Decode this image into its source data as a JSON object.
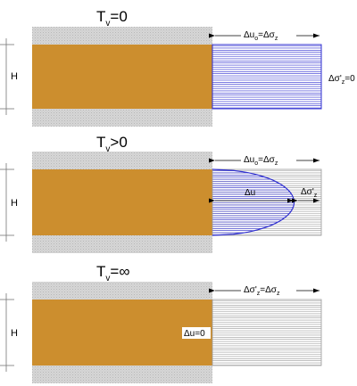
{
  "colors": {
    "clay": "#CC8E2E",
    "sand": "#D6D6D6",
    "blue_line": "#3030D0",
    "gray_line": "#9A9A9A"
  },
  "panels": [
    {
      "title": {
        "main": "T",
        "sub": "v",
        "rest": "=0"
      },
      "depth_label": "H",
      "arrow_label": {
        "a": "Δu",
        "a_sub": "o",
        "b": "=Δσ",
        "b_sub": "z"
      },
      "side_label": {
        "a": "Δσ'",
        "a_sub": "z",
        "b": "=0"
      },
      "excess_pore_pressure_fraction": 1.0
    },
    {
      "title": {
        "main": "T",
        "sub": "v",
        "rest": ">0"
      },
      "depth_label": "H",
      "arrow_label": {
        "a": "Δu",
        "a_sub": "o",
        "b": "=Δσ",
        "b_sub": "z"
      },
      "inner_label": "Δu",
      "side_label": {
        "a": "Δσ'",
        "a_sub": "z"
      },
      "excess_pore_pressure_fraction": 0.75
    },
    {
      "title": {
        "main": "T",
        "sub": "v",
        "rest": "=∞"
      },
      "depth_label": "H",
      "arrow_label": {
        "a": "Δσ'",
        "a_sub": "z",
        "b": "=Δσ",
        "b_sub": "z"
      },
      "clay_label": "Δu=0",
      "excess_pore_pressure_fraction": 0.0
    }
  ]
}
